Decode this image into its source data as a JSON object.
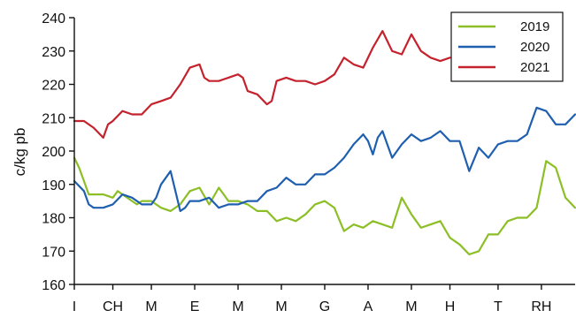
{
  "chart_data": {
    "type": "line",
    "ylabel": "c/kg pb",
    "ylim": [
      160,
      240
    ],
    "yticks": [
      160,
      170,
      180,
      190,
      200,
      210,
      220,
      230,
      240
    ],
    "xlim": [
      0,
      52
    ],
    "xtick_positions": [
      0,
      4,
      8,
      12.5,
      17,
      21.5,
      26,
      30.5,
      35,
      39,
      44,
      48.5
    ],
    "xtick_labels": [
      "I",
      "CH",
      "M",
      "E",
      "M",
      "M",
      "G",
      "A",
      "M",
      "H",
      "T",
      "RH"
    ],
    "grid": false,
    "legend_position": "top-right",
    "series": [
      {
        "name": "2019",
        "color": "#8cbf26",
        "x": [
          0,
          0.5,
          1,
          1.5,
          2,
          3,
          4,
          4.5,
          5,
          6,
          6.5,
          7,
          8,
          9,
          10,
          11,
          12,
          13,
          14,
          15,
          16,
          17,
          18,
          19,
          20,
          21,
          22,
          23,
          24,
          25,
          26,
          27,
          28,
          29,
          30,
          31,
          32,
          33,
          34,
          35,
          36,
          37,
          38,
          39,
          40,
          41,
          42,
          43,
          44,
          45,
          46,
          47,
          48,
          48.5,
          49,
          50,
          51,
          52
        ],
        "y": [
          198,
          195,
          191,
          187,
          187,
          187,
          186,
          188,
          187,
          185,
          184,
          185,
          185,
          183,
          182,
          184,
          188,
          189,
          184,
          189,
          185,
          185,
          184,
          182,
          182,
          179,
          180,
          179,
          181,
          184,
          185,
          183,
          176,
          178,
          177,
          179,
          178,
          177,
          186,
          181,
          177,
          178,
          179,
          174,
          172,
          169,
          170,
          175,
          175,
          179,
          180,
          180,
          183,
          190,
          197,
          195,
          186,
          183
        ]
      },
      {
        "name": "2020",
        "color": "#1f5fb0",
        "x": [
          0,
          1,
          1.5,
          2,
          3,
          4,
          5,
          6,
          7,
          8,
          8.5,
          9,
          10,
          11,
          11.5,
          12,
          13,
          14,
          15,
          16,
          17,
          18,
          19,
          20,
          21,
          22,
          23,
          24,
          25,
          26,
          27,
          28,
          29,
          30,
          30.5,
          31,
          31.5,
          32,
          33,
          34,
          35,
          36,
          37,
          38,
          39,
          40,
          41,
          42,
          43,
          44,
          45,
          46,
          47,
          48,
          49,
          50,
          51,
          52
        ],
        "y": [
          191,
          188,
          184,
          183,
          183,
          184,
          187,
          186,
          184,
          184,
          186,
          190,
          194,
          182,
          183,
          185,
          185,
          186,
          183,
          184,
          184,
          185,
          185,
          188,
          189,
          192,
          190,
          190,
          193,
          193,
          195,
          198,
          202,
          205,
          203,
          199,
          204,
          206,
          198,
          202,
          205,
          203,
          204,
          206,
          203,
          203,
          194,
          201,
          198,
          202,
          203,
          203,
          205,
          213,
          212,
          208,
          208,
          211
        ]
      },
      {
        "name": "2021",
        "color": "#c4222d",
        "x": [
          0,
          1,
          2,
          3,
          3.5,
          4,
          5,
          6,
          7,
          8,
          9,
          10,
          11,
          12,
          13,
          13.5,
          14,
          15,
          16,
          17,
          17.5,
          18,
          19,
          20,
          20.5,
          21,
          22,
          23,
          24,
          25,
          26,
          27,
          28,
          29,
          30,
          31,
          32,
          33,
          34,
          35,
          36,
          37,
          38,
          39
        ],
        "y": [
          209,
          209,
          207,
          204,
          208,
          209,
          212,
          211,
          211,
          214,
          215,
          216,
          220,
          225,
          226,
          222,
          221,
          221,
          222,
          223,
          222,
          218,
          217,
          214,
          215,
          221,
          222,
          221,
          221,
          220,
          221,
          223,
          228,
          226,
          225,
          231,
          236,
          230,
          229,
          235,
          230,
          228,
          227,
          228
        ]
      }
    ]
  }
}
